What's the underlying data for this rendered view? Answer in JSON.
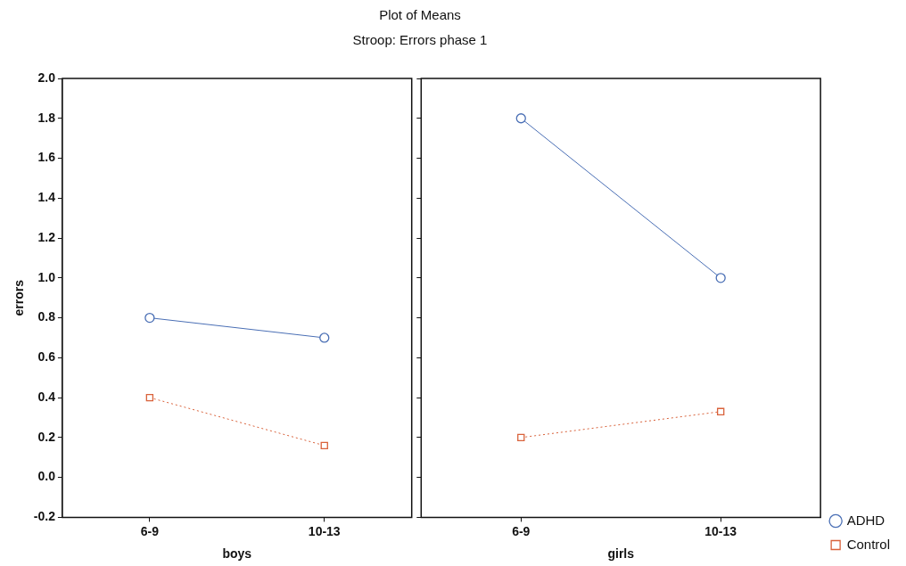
{
  "chart_data": [
    {
      "type": "line",
      "title": "Plot of Means",
      "subtitle": "Stroop: Errors phase 1",
      "xlabel": "boys",
      "ylabel": "errors",
      "categories": [
        "6-9",
        "10-13"
      ],
      "series": [
        {
          "color": "#4a6fb5",
          "values": [
            0.8,
            0.7
          ],
          "marker": "circle",
          "line_style": "solid"
        },
        {
          "color": "#d9623b",
          "values": [
            0.4,
            0.16
          ],
          "marker": "square",
          "line_style": "dotted"
        }
      ],
      "ylim": [
        -0.2,
        2.0
      ],
      "yticks": [
        -0.2,
        {
          "value": 0,
          "label": "0.0"
        },
        0.2,
        0.4,
        0.6,
        0.8,
        {
          "value": 1,
          "label": "1.0"
        },
        1.2,
        1.4,
        1.6,
        1.8,
        {
          "value": 2,
          "label": "2.0"
        }
      ],
      "grid": false,
      "legend": false
    },
    {
      "type": "line",
      "xlabel": "girls",
      "categories": [
        "6-9",
        "10-13"
      ],
      "series": [
        {
          "name": "ADHD",
          "color": "#4a6fb5",
          "values": [
            1.8,
            1.0
          ],
          "marker": "circle",
          "line_style": "solid"
        },
        {
          "name": "Control",
          "color": "#d9623b",
          "values": [
            0.2,
            0.33
          ],
          "marker": "square",
          "line_style": "dotted"
        }
      ],
      "ylim": [
        -0.2,
        2.0
      ],
      "yticks": [
        {
          "value": -0.2,
          "label": null
        },
        {
          "value": 0,
          "label": null
        },
        {
          "value": 0.2,
          "label": null
        },
        {
          "value": 0.4,
          "label": null
        },
        {
          "value": 0.6,
          "label": null
        },
        {
          "value": 0.8,
          "label": null
        },
        {
          "value": 1,
          "label": null
        },
        {
          "value": 1.2,
          "label": null
        },
        {
          "value": 1.4,
          "label": null
        },
        {
          "value": 1.6,
          "label": null
        },
        {
          "value": 1.8,
          "label": null
        },
        {
          "value": 2,
          "label": null
        }
      ],
      "grid": false,
      "legend": "bottom right",
      "tick_labels": "x"
    }
  ]
}
